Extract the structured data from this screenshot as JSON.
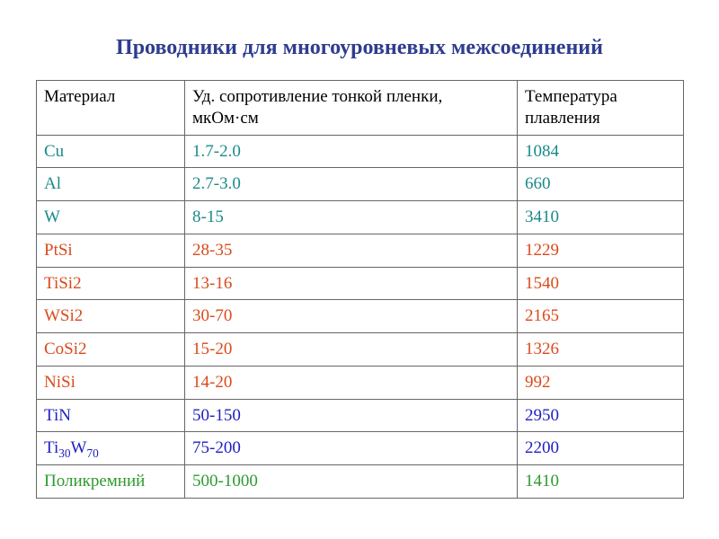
{
  "title": "Проводники для многоуровневых межсоединений",
  "title_color": "#2e3d8f",
  "colors": {
    "header_text": "#000000",
    "border": "#666666",
    "teal": "#1a8a8a",
    "orange": "#d94a1a",
    "blue": "#2020c0",
    "green": "#2e9a2e"
  },
  "table": {
    "columns": [
      "Материал",
      "Уд. сопротивление тонкой пленки, мкОм·см",
      "Температура плавления"
    ],
    "rows": [
      {
        "material": "Cu",
        "resistivity": "1.7-2.0",
        "melting": "1084",
        "color_key": "teal",
        "sub": null
      },
      {
        "material": "Al",
        "resistivity": "2.7-3.0",
        "melting": "660",
        "color_key": "teal",
        "sub": null
      },
      {
        "material": "W",
        "resistivity": "8-15",
        "melting": "3410",
        "color_key": "teal",
        "sub": null
      },
      {
        "material": "PtSi",
        "resistivity": "28-35",
        "melting": "1229",
        "color_key": "orange",
        "sub": null
      },
      {
        "material": "TiSi2",
        "resistivity": "13-16",
        "melting": "1540",
        "color_key": "orange",
        "sub": null
      },
      {
        "material": "WSi2",
        "resistivity": "30-70",
        "melting": "2165",
        "color_key": "orange",
        "sub": null
      },
      {
        "material": "CoSi2",
        "resistivity": "15-20",
        "melting": "1326",
        "color_key": "orange",
        "sub": null
      },
      {
        "material": "NiSi",
        "resistivity": "14-20",
        "melting": "992",
        "color_key": "orange",
        "sub": null
      },
      {
        "material": "TiN",
        "resistivity": "50-150",
        "melting": "2950",
        "color_key": "blue",
        "sub": null
      },
      {
        "material": "Ti30W70",
        "resistivity": "75-200",
        "melting": "2200",
        "color_key": "blue",
        "sub": [
          "Ti",
          "30",
          "W",
          "70"
        ]
      },
      {
        "material": "Поликремний",
        "resistivity": "500-1000",
        "melting": "1410",
        "color_key": "green",
        "sub": null
      }
    ]
  }
}
